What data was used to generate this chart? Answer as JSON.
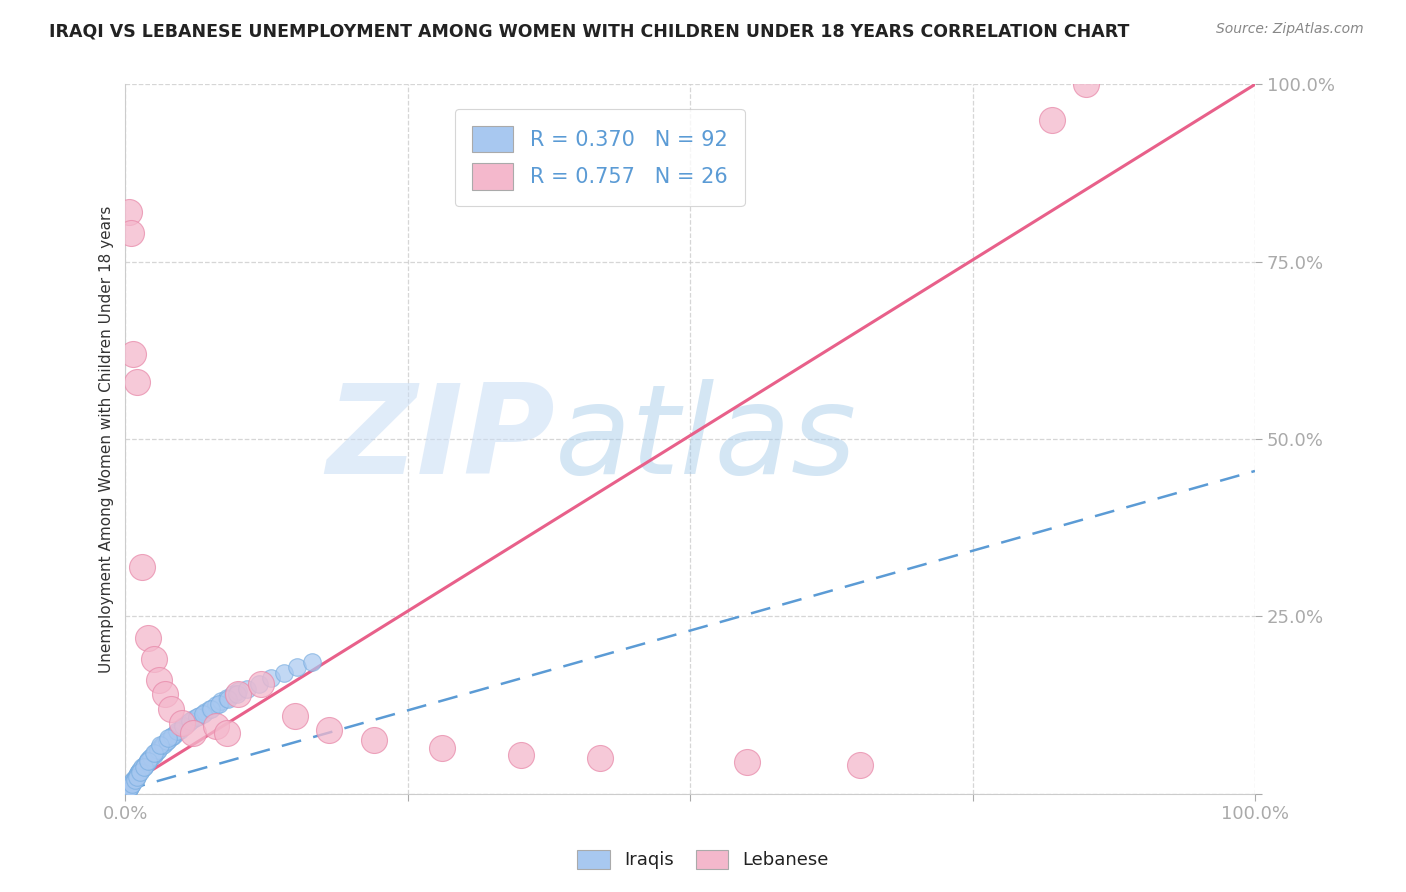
{
  "title": "IRAQI VS LEBANESE UNEMPLOYMENT AMONG WOMEN WITH CHILDREN UNDER 18 YEARS CORRELATION CHART",
  "source": "Source: ZipAtlas.com",
  "ylabel": "Unemployment Among Women with Children Under 18 years",
  "xlim": [
    0,
    1
  ],
  "ylim": [
    0,
    1
  ],
  "iraqi_color": "#a8c8f0",
  "iraqi_edge_color": "#7aaee0",
  "lebanese_color": "#f4b8cc",
  "lebanese_edge_color": "#e88aaa",
  "iraqi_R": 0.37,
  "iraqi_N": 92,
  "lebanese_R": 0.757,
  "lebanese_N": 26,
  "legend_label_iraqi": "Iraqis",
  "legend_label_lebanese": "Lebanese",
  "watermark_zip": "ZIP",
  "watermark_atlas": "atlas",
  "title_color": "#222222",
  "tick_color": "#5b9bd5",
  "grid_color": "#cccccc",
  "iraqi_line_color": "#5b9bd5",
  "lebanese_line_color": "#e8608a",
  "legend_text_color": "#5b9bd5",
  "legend_label_color": "#222222",
  "background_color": "#ffffff",
  "iraqi_line_x0": 0.0,
  "iraqi_line_y0": 0.005,
  "iraqi_line_x1": 1.0,
  "iraqi_line_y1": 0.455,
  "lebanese_line_x0": 0.0,
  "lebanese_line_y0": 0.01,
  "lebanese_line_x1": 1.0,
  "lebanese_line_y1": 1.0,
  "iraqi_points": [
    [
      0.002,
      0.005
    ],
    [
      0.003,
      0.008
    ],
    [
      0.004,
      0.01
    ],
    [
      0.005,
      0.012
    ],
    [
      0.006,
      0.015
    ],
    [
      0.007,
      0.018
    ],
    [
      0.008,
      0.02
    ],
    [
      0.009,
      0.022
    ],
    [
      0.01,
      0.025
    ],
    [
      0.011,
      0.028
    ],
    [
      0.012,
      0.03
    ],
    [
      0.013,
      0.032
    ],
    [
      0.014,
      0.034
    ],
    [
      0.015,
      0.036
    ],
    [
      0.016,
      0.038
    ],
    [
      0.017,
      0.04
    ],
    [
      0.018,
      0.042
    ],
    [
      0.019,
      0.044
    ],
    [
      0.02,
      0.046
    ],
    [
      0.022,
      0.05
    ],
    [
      0.025,
      0.055
    ],
    [
      0.028,
      0.06
    ],
    [
      0.03,
      0.065
    ],
    [
      0.032,
      0.068
    ],
    [
      0.035,
      0.072
    ],
    [
      0.038,
      0.076
    ],
    [
      0.04,
      0.08
    ],
    [
      0.042,
      0.082
    ],
    [
      0.045,
      0.086
    ],
    [
      0.048,
      0.09
    ],
    [
      0.05,
      0.094
    ],
    [
      0.055,
      0.1
    ],
    [
      0.06,
      0.105
    ],
    [
      0.065,
      0.11
    ],
    [
      0.07,
      0.115
    ],
    [
      0.075,
      0.12
    ],
    [
      0.08,
      0.125
    ],
    [
      0.085,
      0.13
    ],
    [
      0.09,
      0.135
    ],
    [
      0.095,
      0.14
    ],
    [
      0.1,
      0.145
    ],
    [
      0.001,
      0.003
    ],
    [
      0.001,
      0.004
    ],
    [
      0.002,
      0.006
    ],
    [
      0.003,
      0.007
    ],
    [
      0.003,
      0.009
    ],
    [
      0.004,
      0.011
    ],
    [
      0.005,
      0.013
    ],
    [
      0.006,
      0.016
    ],
    [
      0.007,
      0.019
    ],
    [
      0.008,
      0.021
    ],
    [
      0.009,
      0.024
    ],
    [
      0.01,
      0.026
    ],
    [
      0.011,
      0.029
    ],
    [
      0.012,
      0.031
    ],
    [
      0.013,
      0.033
    ],
    [
      0.015,
      0.037
    ],
    [
      0.017,
      0.041
    ],
    [
      0.02,
      0.047
    ],
    [
      0.023,
      0.052
    ],
    [
      0.026,
      0.057
    ],
    [
      0.029,
      0.062
    ],
    [
      0.033,
      0.069
    ],
    [
      0.037,
      0.074
    ],
    [
      0.041,
      0.081
    ],
    [
      0.046,
      0.088
    ],
    [
      0.051,
      0.096
    ],
    [
      0.057,
      0.102
    ],
    [
      0.063,
      0.108
    ],
    [
      0.069,
      0.113
    ],
    [
      0.076,
      0.119
    ],
    [
      0.083,
      0.127
    ],
    [
      0.091,
      0.133
    ],
    [
      0.099,
      0.141
    ],
    [
      0.108,
      0.148
    ],
    [
      0.118,
      0.155
    ],
    [
      0.129,
      0.163
    ],
    [
      0.14,
      0.17
    ],
    [
      0.152,
      0.178
    ],
    [
      0.165,
      0.186
    ],
    [
      0.001,
      0.002
    ],
    [
      0.002,
      0.004
    ],
    [
      0.004,
      0.009
    ],
    [
      0.006,
      0.014
    ],
    [
      0.008,
      0.019
    ],
    [
      0.01,
      0.024
    ],
    [
      0.013,
      0.03
    ],
    [
      0.016,
      0.038
    ],
    [
      0.02,
      0.046
    ],
    [
      0.025,
      0.057
    ],
    [
      0.031,
      0.068
    ],
    [
      0.038,
      0.079
    ]
  ],
  "lebanese_points": [
    [
      0.003,
      0.82
    ],
    [
      0.005,
      0.79
    ],
    [
      0.007,
      0.62
    ],
    [
      0.01,
      0.58
    ],
    [
      0.015,
      0.32
    ],
    [
      0.02,
      0.22
    ],
    [
      0.025,
      0.19
    ],
    [
      0.03,
      0.16
    ],
    [
      0.035,
      0.14
    ],
    [
      0.04,
      0.12
    ],
    [
      0.05,
      0.1
    ],
    [
      0.06,
      0.085
    ],
    [
      0.08,
      0.095
    ],
    [
      0.09,
      0.085
    ],
    [
      0.1,
      0.14
    ],
    [
      0.12,
      0.155
    ],
    [
      0.15,
      0.11
    ],
    [
      0.18,
      0.09
    ],
    [
      0.22,
      0.075
    ],
    [
      0.28,
      0.065
    ],
    [
      0.35,
      0.055
    ],
    [
      0.42,
      0.05
    ],
    [
      0.55,
      0.045
    ],
    [
      0.65,
      0.04
    ],
    [
      0.82,
      0.95
    ],
    [
      0.85,
      1.0
    ]
  ]
}
